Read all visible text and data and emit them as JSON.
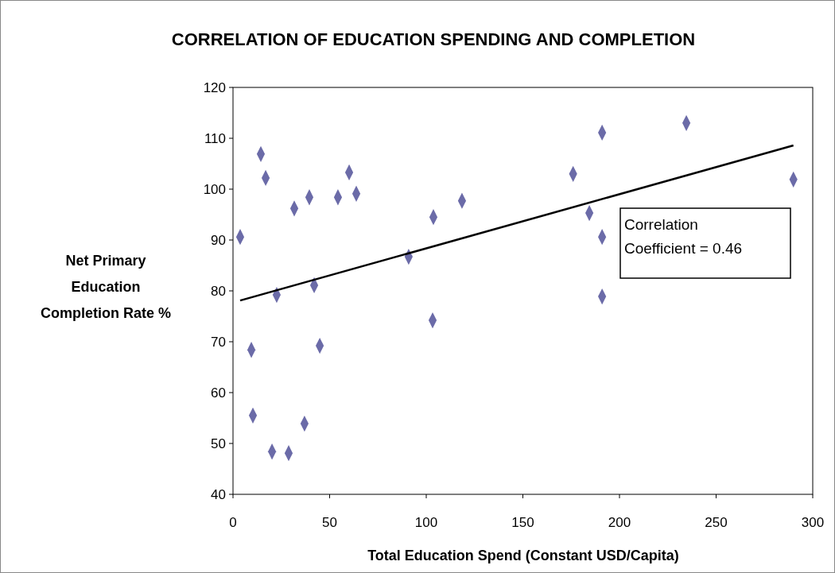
{
  "chart_data": {
    "type": "scatter",
    "title": "CORRELATION OF EDUCATION SPENDING AND COMPLETION",
    "xlabel": "Total Education Spend (Constant USD/Capita)",
    "ylabel": "Net Primary Education Completion Rate %",
    "xlim": [
      0,
      300
    ],
    "xticks": [
      0,
      50,
      100,
      150,
      200,
      250,
      300
    ],
    "ylim": [
      40,
      120
    ],
    "yticks": [
      40,
      50,
      60,
      70,
      80,
      90,
      100,
      110,
      120
    ],
    "grid": false,
    "marker": "diamond",
    "annotations": [
      "Correlation Coefficient = 0.46"
    ],
    "series": [
      {
        "color": "#6b6ba8",
        "x": [
          3.7,
          14.4,
          16.9,
          9.5,
          10.3,
          22.6,
          20.2,
          28.8,
          31.7,
          39.5,
          42,
          37,
          44.9,
          54.3,
          60.1,
          63.8,
          90.9,
          103.7,
          103.3,
          118.5,
          176,
          184.4,
          191,
          191,
          191,
          234.6,
          290
        ],
        "values": [
          90.6,
          106.9,
          102.2,
          68.4,
          55.5,
          79.2,
          48.4,
          48.1,
          96.2,
          98.4,
          81.1,
          53.9,
          69.2,
          98.4,
          103.3,
          99.1,
          86.7,
          94.5,
          74.2,
          97.7,
          103,
          95.3,
          111.1,
          90.6,
          78.9,
          113,
          101.9
        ]
      },
      {
        "type": "line",
        "color": "#000000",
        "line_style": "solid",
        "marker": "none",
        "x": [
          3.7,
          290
        ],
        "values": [
          78.1,
          108.6
        ]
      }
    ]
  }
}
